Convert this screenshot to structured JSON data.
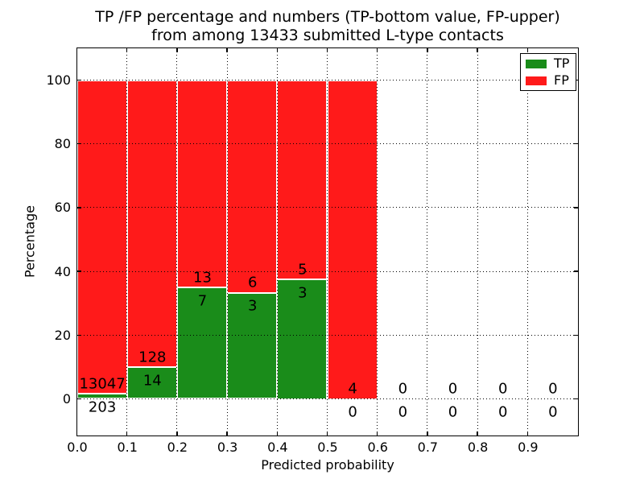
{
  "figure": {
    "title_line1": "TP /FP percentage and numbers (TP-bottom value, FP-upper)",
    "title_line2": "from among 13433 submitted L-type contacts",
    "xlabel": "Predicted probability",
    "ylabel": "Percentage"
  },
  "legend": {
    "items": [
      {
        "label": "TP",
        "color": "#1a8c1a"
      },
      {
        "label": "FP",
        "color": "#ff1a1a"
      }
    ]
  },
  "chart_data": {
    "type": "bar",
    "stacked": true,
    "unit": "percent",
    "title": "TP /FP percentage and numbers (TP-bottom value, FP-upper) from among 13433 submitted L-type contacts",
    "xlabel": "Predicted probability",
    "ylabel": "Percentage",
    "total_submitted_contacts": 13433,
    "x_tick_labels": [
      "0.0",
      "0.1",
      "0.2",
      "0.3",
      "0.4",
      "0.5",
      "0.6",
      "0.7",
      "0.8",
      "0.9"
    ],
    "y_ticks": [
      0,
      20,
      40,
      60,
      80,
      100
    ],
    "xlim": [
      0.0,
      1.0
    ],
    "ylim": [
      -11.4,
      110.1
    ],
    "grid": "dotted-black-on-top",
    "legend_position": "upper-right",
    "colors": {
      "tp": "#1a8c1a",
      "fp": "#ff1a1a",
      "bar_edge": "#ffffff"
    },
    "series_names": [
      "TP",
      "FP"
    ],
    "bins": [
      {
        "range": [
          0.0,
          0.1
        ],
        "tp": 203,
        "fp": 13047,
        "tp_pct": 1.53,
        "fp_pct": 98.47,
        "tp_label": "203",
        "fp_label": "13047"
      },
      {
        "range": [
          0.1,
          0.2
        ],
        "tp": 14,
        "fp": 128,
        "tp_pct": 9.86,
        "fp_pct": 90.14,
        "tp_label": "14",
        "fp_label": "128"
      },
      {
        "range": [
          0.2,
          0.3
        ],
        "tp": 7,
        "fp": 13,
        "tp_pct": 35.0,
        "fp_pct": 65.0,
        "tp_label": "7",
        "fp_label": "13"
      },
      {
        "range": [
          0.3,
          0.4
        ],
        "tp": 3,
        "fp": 6,
        "tp_pct": 33.33,
        "fp_pct": 66.67,
        "tp_label": "3",
        "fp_label": "6"
      },
      {
        "range": [
          0.4,
          0.5
        ],
        "tp": 3,
        "fp": 5,
        "tp_pct": 37.5,
        "fp_pct": 62.5,
        "tp_label": "3",
        "fp_label": "5"
      },
      {
        "range": [
          0.5,
          0.6
        ],
        "tp": 0,
        "fp": 4,
        "tp_pct": 0.0,
        "fp_pct": 100.0,
        "tp_label": "0",
        "fp_label": "4"
      },
      {
        "range": [
          0.6,
          0.7
        ],
        "tp": 0,
        "fp": 0,
        "tp_pct": 0.0,
        "fp_pct": 0.0,
        "tp_label": "0",
        "fp_label": "0"
      },
      {
        "range": [
          0.7,
          0.8
        ],
        "tp": 0,
        "fp": 0,
        "tp_pct": 0.0,
        "fp_pct": 0.0,
        "tp_label": "0",
        "fp_label": "0"
      },
      {
        "range": [
          0.8,
          0.9
        ],
        "tp": 0,
        "fp": 0,
        "tp_pct": 0.0,
        "fp_pct": 0.0,
        "tp_label": "0",
        "fp_label": "0"
      },
      {
        "range": [
          0.9,
          1.0
        ],
        "tp": 0,
        "fp": 0,
        "tp_pct": 0.0,
        "fp_pct": 0.0,
        "tp_label": "0",
        "fp_label": "0"
      }
    ]
  }
}
